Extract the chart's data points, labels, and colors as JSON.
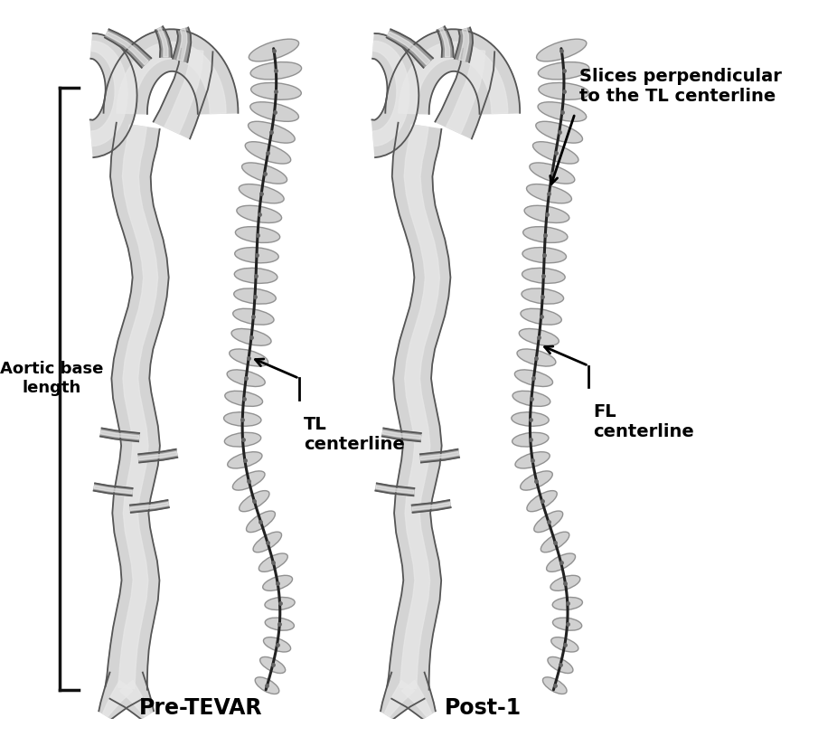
{
  "bg_color": "#ffffff",
  "label_pre_tevar": "Pre-TEVAR",
  "label_post1": "Post-1",
  "label_aortic_base": "Aortic base\nlength",
  "label_tl_centerline": "TL\ncenterline",
  "label_fl_centerline": "FL\ncenterline",
  "label_slices": "Slices perpendicular\nto the TL centerline",
  "font_size_labels": 13,
  "font_size_bottom": 17,
  "font_weight": "bold",
  "vessel_fill": "#d4d4d4",
  "vessel_inner": "#e8e8e8",
  "vessel_dark": "#999999",
  "vessel_outline": "#555555",
  "ellipse_fill": "#cccccc",
  "ellipse_edge": "#888888",
  "centerline_color": "#222222",
  "bracket_color": "#111111",
  "annotation_color": "#111111"
}
